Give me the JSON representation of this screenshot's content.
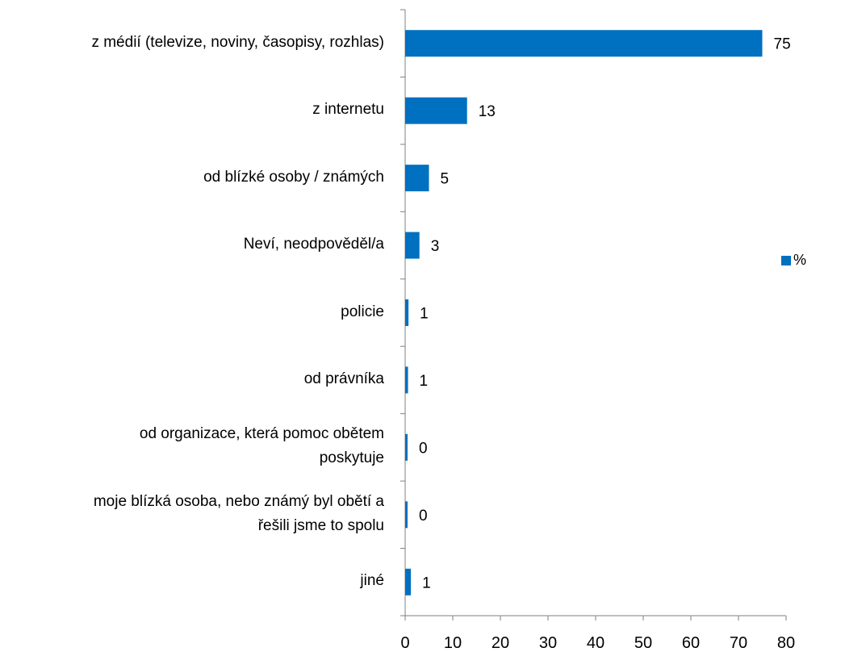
{
  "colors": {
    "bar": "#0070C0",
    "axis": "#808080"
  },
  "chart_data": {
    "type": "bar",
    "orientation": "horizontal",
    "categories": [
      "z médií (televize, noviny, časopisy, rozhlas)",
      "z internetu",
      "od blízké osoby / známých",
      "Neví, neodpověděl/a",
      "policie",
      "od právníka",
      "od organizace, která pomoc obětem poskytuje",
      "moje blízká osoba, nebo známý byl obětí a řešili jsme to spolu",
      "jiné"
    ],
    "category_lines": [
      [
        "z médií (televize, noviny, časopisy, rozhlas)"
      ],
      [
        "z internetu"
      ],
      [
        "od blízké osoby / známých"
      ],
      [
        "Neví, neodpověděl/a"
      ],
      [
        "policie"
      ],
      [
        "od právníka"
      ],
      [
        "od organizace, která pomoc obětem",
        "poskytuje"
      ],
      [
        "moje blízká osoba, nebo známý byl obětí a",
        "řešili jsme to spolu"
      ],
      [
        "jiné"
      ]
    ],
    "series": [
      {
        "name": "%",
        "values": [
          75,
          13,
          5,
          3,
          0.7,
          0.6,
          0.4,
          0.4,
          1.2
        ],
        "data_labels": [
          "75",
          "13",
          "5",
          "3",
          "1",
          "1",
          "0",
          "0",
          "1"
        ]
      }
    ],
    "xlim": [
      0,
      80
    ],
    "xticks": [
      "0",
      "10",
      "20",
      "30",
      "40",
      "50",
      "60",
      "70",
      "80"
    ],
    "grid": false,
    "legend": "right"
  }
}
